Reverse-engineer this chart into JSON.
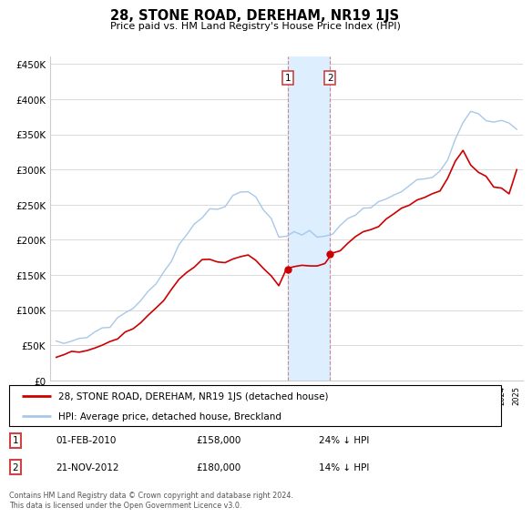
{
  "title": "28, STONE ROAD, DEREHAM, NR19 1JS",
  "subtitle": "Price paid vs. HM Land Registry's House Price Index (HPI)",
  "ylabel_ticks": [
    "£0",
    "£50K",
    "£100K",
    "£150K",
    "£200K",
    "£250K",
    "£300K",
    "£350K",
    "£400K",
    "£450K"
  ],
  "ytick_values": [
    0,
    50000,
    100000,
    150000,
    200000,
    250000,
    300000,
    350000,
    400000,
    450000
  ],
  "ylim": [
    0,
    460000
  ],
  "legend_line1": "28, STONE ROAD, DEREHAM, NR19 1JS (detached house)",
  "legend_line2": "HPI: Average price, detached house, Breckland",
  "sale1_date": "01-FEB-2010",
  "sale1_price": "£158,000",
  "sale1_hpi": "24% ↓ HPI",
  "sale2_date": "21-NOV-2012",
  "sale2_price": "£180,000",
  "sale2_hpi": "14% ↓ HPI",
  "footnote": "Contains HM Land Registry data © Crown copyright and database right 2024.\nThis data is licensed under the Open Government Licence v3.0.",
  "hpi_color": "#a8c8e8",
  "price_color": "#cc0000",
  "sale_marker_color": "#cc0000",
  "shade_color": "#ddeeff",
  "background_color": "#ffffff",
  "grid_color": "#cccccc",
  "hpi_years": [
    1995.0,
    1995.5,
    1996.0,
    1996.5,
    1997.0,
    1997.5,
    1998.0,
    1998.5,
    1999.0,
    1999.5,
    2000.0,
    2000.5,
    2001.0,
    2001.5,
    2002.0,
    2002.5,
    2003.0,
    2003.5,
    2004.0,
    2004.5,
    2005.0,
    2005.5,
    2006.0,
    2006.5,
    2007.0,
    2007.5,
    2008.0,
    2008.5,
    2009.0,
    2009.5,
    2010.0,
    2010.5,
    2011.0,
    2011.5,
    2012.0,
    2012.5,
    2013.0,
    2013.5,
    2014.0,
    2014.5,
    2015.0,
    2015.5,
    2016.0,
    2016.5,
    2017.0,
    2017.5,
    2018.0,
    2018.5,
    2019.0,
    2019.5,
    2020.0,
    2020.5,
    2021.0,
    2021.5,
    2022.0,
    2022.5,
    2023.0,
    2023.5,
    2024.0,
    2024.5,
    2025.0
  ],
  "hpi_values": [
    52000,
    54000,
    56000,
    59000,
    63000,
    69000,
    75000,
    80000,
    87000,
    95000,
    104000,
    114000,
    126000,
    138000,
    155000,
    173000,
    192000,
    207000,
    222000,
    235000,
    240000,
    243000,
    248000,
    258000,
    268000,
    272000,
    262000,
    248000,
    228000,
    205000,
    207000,
    209000,
    211000,
    212000,
    209000,
    207000,
    211000,
    217000,
    226000,
    236000,
    243000,
    246000,
    253000,
    260000,
    268000,
    273000,
    276000,
    280000,
    286000,
    290000,
    293000,
    313000,
    343000,
    366000,
    383000,
    380000,
    373000,
    366000,
    370000,
    363000,
    358000
  ],
  "price_years": [
    1995.0,
    1995.5,
    1996.0,
    1996.5,
    1997.0,
    1997.5,
    1998.0,
    1998.5,
    1999.0,
    1999.5,
    2000.0,
    2000.5,
    2001.0,
    2001.5,
    2002.0,
    2002.5,
    2003.0,
    2003.5,
    2004.0,
    2004.5,
    2005.0,
    2005.5,
    2006.0,
    2006.5,
    2007.0,
    2007.5,
    2008.0,
    2008.5,
    2009.0,
    2009.5,
    2010.0,
    2010.5,
    2011.0,
    2011.5,
    2012.0,
    2012.5,
    2013.0,
    2013.5,
    2014.0,
    2014.5,
    2015.0,
    2015.5,
    2016.0,
    2016.5,
    2017.0,
    2017.5,
    2018.0,
    2018.5,
    2019.0,
    2019.5,
    2020.0,
    2020.5,
    2021.0,
    2021.5,
    2022.0,
    2022.5,
    2023.0,
    2023.5,
    2024.0,
    2024.5,
    2025.0
  ],
  "price_values": [
    36000,
    37000,
    39000,
    41000,
    44000,
    48000,
    52000,
    56000,
    61000,
    67000,
    74000,
    82000,
    91000,
    101000,
    114000,
    129000,
    143000,
    154000,
    164000,
    171000,
    171000,
    168000,
    169000,
    173000,
    177000,
    179000,
    169000,
    157000,
    148000,
    134000,
    158000,
    162000,
    164000,
    164000,
    163000,
    163000,
    180000,
    185000,
    196000,
    206000,
    211000,
    214000,
    221000,
    229000,
    238000,
    243000,
    249000,
    254000,
    261000,
    266000,
    269000,
    286000,
    311000,
    329000,
    306000,
    296000,
    291000,
    276000,
    271000,
    266000,
    301000
  ],
  "sale1_year": 2010.083,
  "sale1_price_val": 158000,
  "sale2_year": 2012.833,
  "sale2_price_val": 180000
}
